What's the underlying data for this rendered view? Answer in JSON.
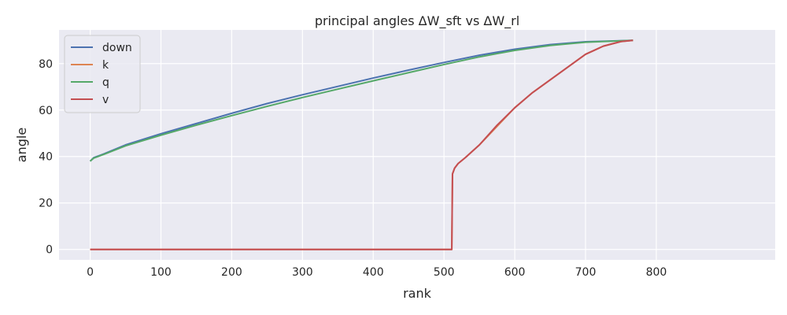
{
  "chart_data": {
    "type": "line",
    "title": "principal angles ΔW_sft vs ΔW_rl",
    "xlabel": "rank",
    "ylabel": "angle",
    "xlim": [
      -44,
      968
    ],
    "ylim": [
      -4.5,
      94.5
    ],
    "xticks": [
      0,
      100,
      200,
      300,
      400,
      500,
      600,
      700,
      800
    ],
    "yticks": [
      0,
      20,
      40,
      60,
      80
    ],
    "grid": true,
    "legend_position": "top-left",
    "series": [
      {
        "name": "down",
        "color": "#4c72b0",
        "points": [
          [
            0,
            38
          ],
          [
            5,
            39.5
          ],
          [
            20,
            41.2
          ],
          [
            50,
            45
          ],
          [
            100,
            49.8
          ],
          [
            150,
            54.2
          ],
          [
            200,
            58.6
          ],
          [
            250,
            62.8
          ],
          [
            300,
            66.6
          ],
          [
            350,
            70.2
          ],
          [
            400,
            73.8
          ],
          [
            450,
            77.2
          ],
          [
            500,
            80.5
          ],
          [
            550,
            83.6
          ],
          [
            600,
            86.2
          ],
          [
            650,
            88.2
          ],
          [
            700,
            89.4
          ],
          [
            767,
            90
          ]
        ]
      },
      {
        "name": "k",
        "color": "#dd8452",
        "points": [
          [
            0,
            0
          ],
          [
            511,
            0
          ],
          [
            512,
            32.5
          ],
          [
            515,
            35
          ],
          [
            520,
            37
          ],
          [
            530,
            39.5
          ],
          [
            550,
            45
          ],
          [
            575,
            53
          ],
          [
            600,
            61
          ],
          [
            625,
            67.5
          ],
          [
            650,
            73
          ],
          [
            675,
            78.5
          ],
          [
            700,
            84
          ],
          [
            725,
            87.5
          ],
          [
            750,
            89.5
          ],
          [
            767,
            90
          ]
        ]
      },
      {
        "name": "q",
        "color": "#55a868",
        "points": [
          [
            0,
            38
          ],
          [
            5,
            39.3
          ],
          [
            20,
            41
          ],
          [
            50,
            44.6
          ],
          [
            100,
            49.2
          ],
          [
            150,
            53.5
          ],
          [
            200,
            57.6
          ],
          [
            250,
            61.6
          ],
          [
            300,
            65.4
          ],
          [
            350,
            69
          ],
          [
            400,
            72.6
          ],
          [
            450,
            76.1
          ],
          [
            500,
            79.6
          ],
          [
            550,
            82.9
          ],
          [
            600,
            85.7
          ],
          [
            650,
            87.8
          ],
          [
            700,
            89.2
          ],
          [
            767,
            90
          ]
        ]
      },
      {
        "name": "v",
        "color": "#c44e52",
        "points": [
          [
            0,
            0
          ],
          [
            511,
            0
          ],
          [
            512,
            32.5
          ],
          [
            515,
            35
          ],
          [
            520,
            37
          ],
          [
            530,
            39.5
          ],
          [
            550,
            45
          ],
          [
            575,
            53.5
          ],
          [
            600,
            61
          ],
          [
            625,
            67.5
          ],
          [
            650,
            73
          ],
          [
            675,
            78.5
          ],
          [
            700,
            84
          ],
          [
            725,
            87.5
          ],
          [
            750,
            89.5
          ],
          [
            767,
            90
          ]
        ]
      }
    ]
  }
}
